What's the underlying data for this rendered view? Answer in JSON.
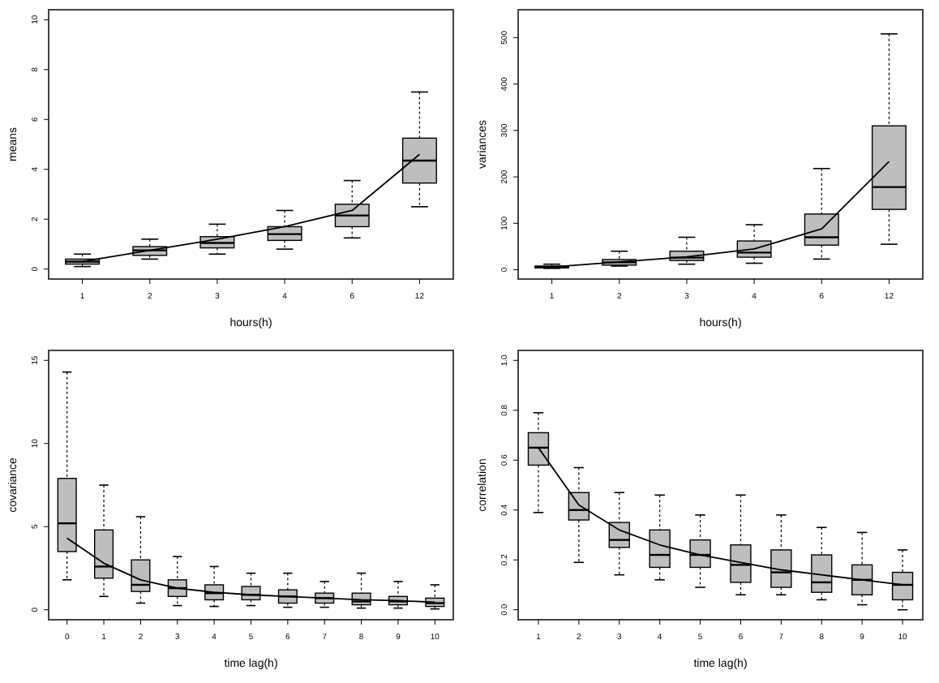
{
  "chart_data": [
    {
      "type": "box",
      "xlabel": "hours(h)",
      "ylabel": "means",
      "categories": [
        "1",
        "2",
        "3",
        "4",
        "6",
        "12"
      ],
      "ylim": [
        -0.4,
        10.4
      ],
      "yticks": [
        0,
        2,
        4,
        6,
        8,
        10
      ],
      "grid": false,
      "series": [
        {
          "type": "box",
          "color": "#bebebe",
          "boxes": [
            {
              "low": 0.1,
              "q1": 0.2,
              "median": 0.3,
              "q3": 0.4,
              "high": 0.6
            },
            {
              "low": 0.4,
              "q1": 0.55,
              "median": 0.75,
              "q3": 0.9,
              "high": 1.2
            },
            {
              "low": 0.6,
              "q1": 0.85,
              "median": 1.05,
              "q3": 1.3,
              "high": 1.8
            },
            {
              "low": 0.8,
              "q1": 1.15,
              "median": 1.4,
              "q3": 1.7,
              "high": 2.35
            },
            {
              "low": 1.25,
              "q1": 1.7,
              "median": 2.15,
              "q3": 2.6,
              "high": 3.55
            },
            {
              "low": 2.5,
              "q1": 3.45,
              "median": 4.35,
              "q3": 5.25,
              "high": 7.1
            }
          ]
        },
        {
          "type": "line",
          "color": "#000000",
          "values": [
            0.3,
            0.75,
            1.2,
            1.7,
            2.35,
            4.6
          ]
        }
      ]
    },
    {
      "type": "box",
      "xlabel": "hours(h)",
      "ylabel": "variances",
      "categories": [
        "1",
        "2",
        "3",
        "4",
        "6",
        "12"
      ],
      "ylim": [
        -20,
        560
      ],
      "yticks": [
        0,
        100,
        200,
        300,
        400,
        500
      ],
      "grid": false,
      "series": [
        {
          "type": "box",
          "color": "#bebebe",
          "boxes": [
            {
              "low": 3,
              "q1": 4,
              "median": 6,
              "q3": 8,
              "high": 12
            },
            {
              "low": 8,
              "q1": 10,
              "median": 16,
              "q3": 22,
              "high": 40
            },
            {
              "low": 12,
              "q1": 20,
              "median": 26,
              "q3": 40,
              "high": 70
            },
            {
              "low": 14,
              "q1": 27,
              "median": 37,
              "q3": 62,
              "high": 97
            },
            {
              "low": 23,
              "q1": 53,
              "median": 70,
              "q3": 120,
              "high": 218
            },
            {
              "low": 55,
              "q1": 130,
              "median": 178,
              "q3": 310,
              "high": 508
            }
          ]
        },
        {
          "type": "line",
          "color": "#000000",
          "values": [
            6,
            17,
            28,
            45,
            88,
            233
          ]
        }
      ]
    },
    {
      "type": "box",
      "xlabel": "time lag(h)",
      "ylabel": "covariance",
      "categories": [
        "0",
        "1",
        "2",
        "3",
        "4",
        "5",
        "6",
        "7",
        "8",
        "9",
        "10"
      ],
      "ylim": [
        -0.6,
        15.6
      ],
      "yticks": [
        0,
        5,
        10,
        15
      ],
      "grid": false,
      "series": [
        {
          "type": "box",
          "color": "#bebebe",
          "boxes": [
            {
              "low": 1.8,
              "q1": 3.5,
              "median": 5.2,
              "q3": 7.9,
              "high": 14.3
            },
            {
              "low": 0.8,
              "q1": 1.9,
              "median": 2.6,
              "q3": 4.8,
              "high": 7.5
            },
            {
              "low": 0.4,
              "q1": 1.1,
              "median": 1.5,
              "q3": 3.0,
              "high": 5.6
            },
            {
              "low": 0.25,
              "q1": 0.8,
              "median": 1.3,
              "q3": 1.8,
              "high": 3.2
            },
            {
              "low": 0.2,
              "q1": 0.6,
              "median": 1.0,
              "q3": 1.5,
              "high": 2.6
            },
            {
              "low": 0.25,
              "q1": 0.6,
              "median": 0.9,
              "q3": 1.4,
              "high": 2.2
            },
            {
              "low": 0.15,
              "q1": 0.4,
              "median": 0.8,
              "q3": 1.2,
              "high": 2.2
            },
            {
              "low": 0.15,
              "q1": 0.4,
              "median": 0.7,
              "q3": 1.0,
              "high": 1.7
            },
            {
              "low": 0.1,
              "q1": 0.3,
              "median": 0.5,
              "q3": 1.0,
              "high": 2.2
            },
            {
              "low": 0.1,
              "q1": 0.3,
              "median": 0.5,
              "q3": 0.8,
              "high": 1.7
            },
            {
              "low": 0.05,
              "q1": 0.2,
              "median": 0.4,
              "q3": 0.7,
              "high": 1.5
            }
          ]
        },
        {
          "type": "line",
          "color": "#000000",
          "values": [
            4.3,
            2.8,
            1.8,
            1.3,
            1.05,
            0.9,
            0.8,
            0.7,
            0.6,
            0.55,
            0.45
          ]
        }
      ]
    },
    {
      "type": "box",
      "xlabel": "time lag(h)",
      "ylabel": "correlation",
      "categories": [
        "1",
        "2",
        "3",
        "4",
        "5",
        "6",
        "7",
        "8",
        "9",
        "10"
      ],
      "ylim": [
        -0.04,
        1.04
      ],
      "yticks": [
        {
          "value": 0,
          "label": "0.0"
        },
        0.2,
        0.4,
        0.6,
        0.8,
        {
          "value": 1,
          "label": "1.0"
        }
      ],
      "grid": false,
      "series": [
        {
          "type": "box",
          "color": "#bebebe",
          "boxes": [
            {
              "low": 0.39,
              "q1": 0.58,
              "median": 0.65,
              "q3": 0.71,
              "high": 0.79
            },
            {
              "low": 0.19,
              "q1": 0.36,
              "median": 0.4,
              "q3": 0.47,
              "high": 0.57
            },
            {
              "low": 0.14,
              "q1": 0.25,
              "median": 0.28,
              "q3": 0.35,
              "high": 0.47
            },
            {
              "low": 0.12,
              "q1": 0.17,
              "median": 0.22,
              "q3": 0.32,
              "high": 0.46
            },
            {
              "low": 0.09,
              "q1": 0.17,
              "median": 0.22,
              "q3": 0.28,
              "high": 0.38
            },
            {
              "low": 0.06,
              "q1": 0.11,
              "median": 0.18,
              "q3": 0.26,
              "high": 0.46
            },
            {
              "low": 0.06,
              "q1": 0.09,
              "median": 0.15,
              "q3": 0.24,
              "high": 0.38
            },
            {
              "low": 0.04,
              "q1": 0.07,
              "median": 0.11,
              "q3": 0.22,
              "high": 0.33
            },
            {
              "low": 0.02,
              "q1": 0.06,
              "median": 0.12,
              "q3": 0.18,
              "high": 0.31
            },
            {
              "low": 0.0,
              "q1": 0.04,
              "median": 0.1,
              "q3": 0.15,
              "high": 0.24
            }
          ]
        },
        {
          "type": "line",
          "color": "#000000",
          "values": [
            0.65,
            0.42,
            0.32,
            0.26,
            0.22,
            0.19,
            0.16,
            0.14,
            0.12,
            0.1
          ]
        }
      ]
    }
  ]
}
